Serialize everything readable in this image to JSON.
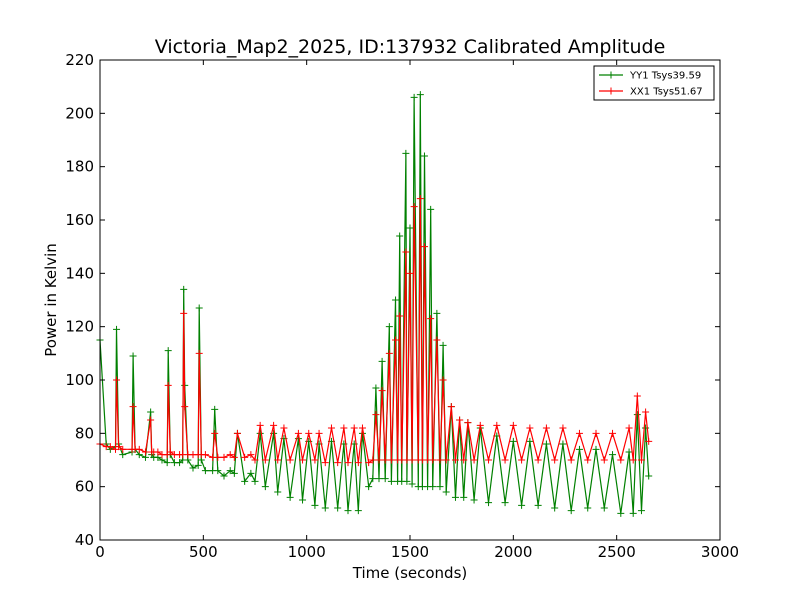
{
  "chart_data": {
    "type": "line",
    "title": "Victoria_Map2_2025, ID:137932 Calibrated Amplitude",
    "xlabel": "Time (seconds)",
    "ylabel": "Power in Kelvin",
    "xlim": [
      0,
      3000
    ],
    "ylim": [
      40,
      220
    ],
    "xticks": [
      0,
      500,
      1000,
      1500,
      2000,
      2500,
      3000
    ],
    "yticks": [
      40,
      60,
      80,
      100,
      120,
      140,
      160,
      180,
      200,
      220
    ],
    "grid": false,
    "legend_placement": "top-right",
    "marker": "+",
    "series": [
      {
        "name": "YY1 Tsys39.59",
        "color": "#008000",
        "x": [
          0,
          30,
          50,
          75,
          80,
          90,
          110,
          155,
          160,
          170,
          190,
          220,
          245,
          250,
          260,
          280,
          300,
          325,
          330,
          340,
          360,
          385,
          400,
          405,
          410,
          425,
          450,
          475,
          480,
          490,
          510,
          545,
          555,
          570,
          600,
          630,
          650,
          665,
          700,
          730,
          750,
          775,
          800,
          840,
          860,
          890,
          920,
          960,
          980,
          1010,
          1040,
          1060,
          1090,
          1120,
          1150,
          1180,
          1200,
          1230,
          1250,
          1270,
          1300,
          1320,
          1335,
          1350,
          1365,
          1380,
          1400,
          1410,
          1430,
          1440,
          1450,
          1460,
          1480,
          1485,
          1500,
          1510,
          1520,
          1540,
          1550,
          1560,
          1570,
          1585,
          1600,
          1610,
          1630,
          1645,
          1660,
          1675,
          1700,
          1720,
          1740,
          1760,
          1780,
          1810,
          1840,
          1880,
          1920,
          1960,
          2000,
          2040,
          2080,
          2120,
          2160,
          2200,
          2240,
          2280,
          2320,
          2360,
          2400,
          2440,
          2480,
          2520,
          2560,
          2580,
          2600,
          2620,
          2640,
          2655
        ],
        "y": [
          115,
          76,
          74,
          75,
          119,
          76,
          72,
          73,
          109,
          74,
          72,
          71,
          88,
          72,
          71,
          71,
          70,
          69,
          111,
          72,
          69,
          69,
          70,
          134,
          98,
          70,
          67,
          68,
          127,
          70,
          66,
          66,
          89,
          66,
          64,
          66,
          65,
          80,
          62,
          65,
          62,
          80,
          60,
          80,
          58,
          78,
          56,
          78,
          55,
          77,
          53,
          76,
          52,
          77,
          52,
          76,
          51,
          76,
          51,
          80,
          60,
          63,
          97,
          63,
          107,
          63,
          120,
          62,
          130,
          62,
          154,
          62,
          185,
          62,
          157,
          61,
          206,
          60,
          207,
          60,
          184,
          60,
          164,
          60,
          125,
          60,
          113,
          58,
          90,
          56,
          85,
          56,
          84,
          55,
          82,
          54,
          79,
          54,
          77,
          53,
          77,
          53,
          76,
          52,
          76,
          51,
          74,
          52,
          74,
          52,
          72,
          50,
          73,
          50,
          87,
          51,
          82,
          64
        ]
      },
      {
        "name": "XX1 Tsys51.67",
        "color": "#ff0000",
        "x": [
          0,
          30,
          50,
          75,
          80,
          90,
          110,
          155,
          160,
          170,
          190,
          220,
          245,
          250,
          260,
          280,
          300,
          325,
          330,
          340,
          360,
          385,
          400,
          405,
          410,
          425,
          450,
          475,
          480,
          490,
          510,
          545,
          555,
          570,
          600,
          630,
          650,
          665,
          700,
          730,
          750,
          775,
          800,
          840,
          860,
          890,
          920,
          960,
          980,
          1010,
          1040,
          1060,
          1090,
          1120,
          1150,
          1180,
          1200,
          1230,
          1250,
          1270,
          1300,
          1320,
          1335,
          1350,
          1365,
          1380,
          1400,
          1410,
          1430,
          1440,
          1450,
          1460,
          1480,
          1485,
          1500,
          1510,
          1520,
          1540,
          1550,
          1560,
          1570,
          1585,
          1600,
          1610,
          1630,
          1645,
          1660,
          1675,
          1700,
          1720,
          1740,
          1760,
          1780,
          1810,
          1840,
          1880,
          1920,
          1960,
          2000,
          2040,
          2080,
          2120,
          2160,
          2200,
          2240,
          2280,
          2320,
          2360,
          2400,
          2440,
          2480,
          2520,
          2560,
          2580,
          2600,
          2620,
          2640,
          2655
        ],
        "y": [
          76,
          75,
          75,
          74,
          100,
          75,
          74,
          74,
          90,
          74,
          74,
          73,
          85,
          73,
          73,
          73,
          72,
          72,
          98,
          73,
          72,
          72,
          72,
          125,
          90,
          72,
          72,
          72,
          110,
          72,
          72,
          71,
          80,
          71,
          71,
          72,
          71,
          80,
          71,
          72,
          70,
          83,
          70,
          83,
          70,
          82,
          70,
          80,
          70,
          80,
          70,
          80,
          69,
          82,
          69,
          82,
          69,
          82,
          69,
          82,
          69,
          70,
          87,
          70,
          96,
          70,
          110,
          70,
          115,
          70,
          124,
          70,
          148,
          70,
          140,
          70,
          165,
          70,
          168,
          70,
          150,
          70,
          123,
          70,
          115,
          70,
          100,
          70,
          90,
          70,
          85,
          70,
          84,
          70,
          83,
          70,
          83,
          70,
          83,
          70,
          82,
          70,
          82,
          70,
          82,
          70,
          80,
          70,
          80,
          70,
          80,
          70,
          82,
          70,
          94,
          70,
          88,
          77
        ]
      }
    ]
  }
}
